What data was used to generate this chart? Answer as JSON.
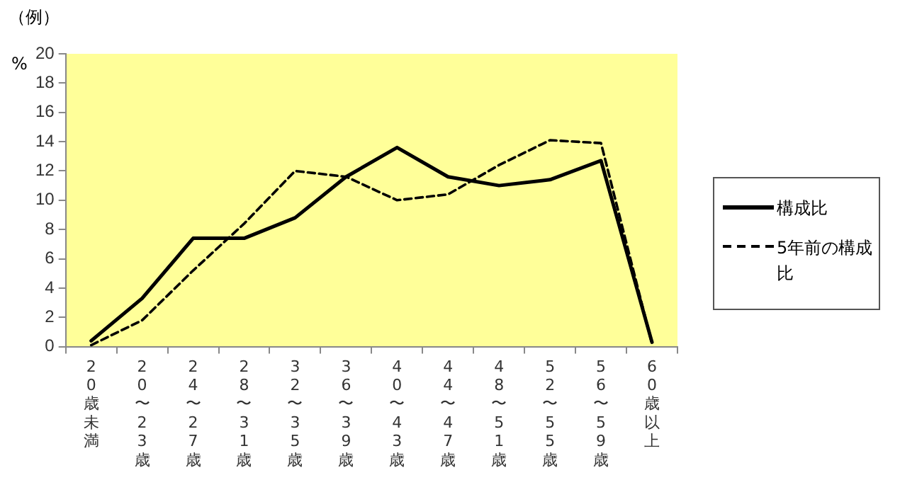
{
  "chart_data": {
    "type": "line",
    "ylabel": "%",
    "annotations": [
      "（例）"
    ],
    "categories": [
      "20歳未満",
      "20〜23歳",
      "24〜27歳",
      "28〜31歳",
      "32〜35歳",
      "36〜39歳",
      "40〜43歳",
      "44〜47歳",
      "48〜51歳",
      "52〜55歳",
      "56〜59歳",
      "60歳以上"
    ],
    "series": [
      {
        "name": "構成比",
        "color": "#000000",
        "line_style": "solid",
        "values": [
          0.4,
          3.3,
          7.4,
          7.4,
          8.8,
          11.6,
          13.6,
          11.6,
          11.0,
          11.4,
          12.7,
          0.3
        ]
      },
      {
        "name": "5年前の構成比",
        "color": "#000000",
        "line_style": "dashed",
        "values": [
          0.1,
          1.8,
          5.2,
          8.4,
          12.0,
          11.6,
          10.0,
          10.4,
          12.4,
          14.1,
          13.9,
          0.2
        ]
      }
    ],
    "ylim": [
      0,
      20
    ],
    "yticks": [
      0,
      2,
      4,
      6,
      8,
      10,
      12,
      14,
      16,
      18,
      20
    ],
    "grid": false,
    "legend": "right",
    "marker": "none"
  }
}
